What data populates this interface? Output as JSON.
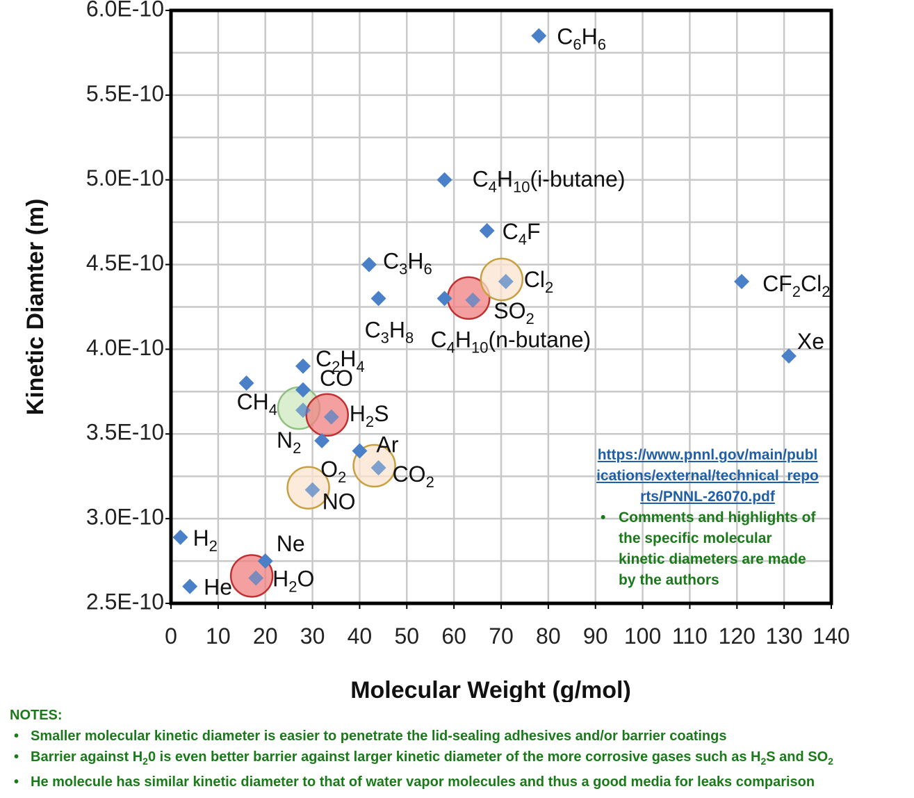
{
  "chart_data": {
    "type": "scatter",
    "xlabel": "Molecular Weight (g/mol)",
    "ylabel": "Kinetic Diamter (m)",
    "xlim": [
      0,
      140
    ],
    "ylim": [
      2.5e-10,
      6e-10
    ],
    "xticks": [
      "0",
      "10",
      "20",
      "30",
      "40",
      "50",
      "60",
      "70",
      "80",
      "90",
      "100",
      "110",
      "120",
      "130",
      "140"
    ],
    "yticks": [
      "2.5E-10",
      "3.0E-10",
      "3.5E-10",
      "4.0E-10",
      "4.5E-10",
      "5.0E-10",
      "5.5E-10",
      "6.0E-10"
    ],
    "grid": true,
    "marker_color": "#4a80c8",
    "points": [
      {
        "x": 2,
        "y": 2.89e-10,
        "label": [
          [
            "H",
            ""
          ],
          [
            "2",
            "sub"
          ]
        ]
      },
      {
        "x": 4,
        "y": 2.6e-10,
        "label": [
          [
            "He",
            ""
          ]
        ]
      },
      {
        "x": 16,
        "y": 3.8e-10,
        "label": [
          [
            "CH",
            ""
          ],
          [
            "4",
            "sub"
          ]
        ]
      },
      {
        "x": 18,
        "y": 2.65e-10,
        "label": [
          [
            "H",
            ""
          ],
          [
            "2",
            "sub"
          ],
          [
            "O",
            ""
          ]
        ],
        "highlight": "red"
      },
      {
        "x": 20,
        "y": 2.75e-10,
        "label": [
          [
            "Ne",
            ""
          ]
        ]
      },
      {
        "x": 28,
        "y": 3.64e-10,
        "label": [
          [
            "N",
            ""
          ],
          [
            "2",
            "sub"
          ]
        ],
        "highlight": "green"
      },
      {
        "x": 28,
        "y": 3.76e-10,
        "label": [
          [
            "CO",
            ""
          ]
        ]
      },
      {
        "x": 28,
        "y": 3.9e-10,
        "label": [
          [
            "C",
            ""
          ],
          [
            "2",
            "sub"
          ],
          [
            "H",
            ""
          ],
          [
            "4",
            "sub"
          ]
        ]
      },
      {
        "x": 30,
        "y": 3.17e-10,
        "label": [
          [
            "NO",
            ""
          ]
        ],
        "highlight": "orange"
      },
      {
        "x": 32,
        "y": 3.46e-10,
        "label": [
          [
            "O",
            ""
          ],
          [
            "2",
            "sub"
          ]
        ]
      },
      {
        "x": 34,
        "y": 3.6e-10,
        "label": [
          [
            "H",
            ""
          ],
          [
            "2",
            "sub"
          ],
          [
            "S",
            ""
          ]
        ],
        "highlight": "red"
      },
      {
        "x": 40,
        "y": 3.4e-10,
        "label": [
          [
            "Ar",
            ""
          ]
        ]
      },
      {
        "x": 42,
        "y": 4.5e-10,
        "label": [
          [
            "C",
            ""
          ],
          [
            "3",
            "sub"
          ],
          [
            "H",
            ""
          ],
          [
            "6",
            "sub"
          ]
        ]
      },
      {
        "x": 44,
        "y": 3.3e-10,
        "label": [
          [
            "CO",
            ""
          ],
          [
            "2",
            "sub"
          ]
        ],
        "highlight": "orange"
      },
      {
        "x": 44,
        "y": 4.3e-10,
        "label": [
          [
            "C",
            ""
          ],
          [
            "3",
            "sub"
          ],
          [
            "H",
            ""
          ],
          [
            "8",
            "sub"
          ]
        ]
      },
      {
        "x": 58,
        "y": 4.3e-10,
        "label": [
          [
            "C",
            ""
          ],
          [
            "4",
            "sub"
          ],
          [
            "H",
            ""
          ],
          [
            "10",
            "sub"
          ],
          [
            "(n-butane)",
            ""
          ]
        ]
      },
      {
        "x": 58,
        "y": 5e-10,
        "label": [
          [
            "C",
            ""
          ],
          [
            "4",
            "sub"
          ],
          [
            "H",
            ""
          ],
          [
            "10",
            "sub"
          ],
          [
            "(i-butane)",
            ""
          ]
        ]
      },
      {
        "x": 64,
        "y": 4.29e-10,
        "label": [
          [
            "SO",
            ""
          ],
          [
            "2",
            "sub"
          ]
        ],
        "highlight": "red"
      },
      {
        "x": 67,
        "y": 4.7e-10,
        "label": [
          [
            "C",
            ""
          ],
          [
            "4",
            "sub"
          ],
          [
            "F",
            ""
          ]
        ]
      },
      {
        "x": 71,
        "y": 4.4e-10,
        "label": [
          [
            "Cl",
            ""
          ],
          [
            "2",
            "sub"
          ]
        ],
        "highlight": "orange"
      },
      {
        "x": 78,
        "y": 5.85e-10,
        "label": [
          [
            "C",
            ""
          ],
          [
            "6",
            "sub"
          ],
          [
            "H",
            ""
          ],
          [
            "6",
            "sub"
          ]
        ]
      },
      {
        "x": 121,
        "y": 4.4e-10,
        "label": [
          [
            "CF",
            ""
          ],
          [
            "2",
            "sub"
          ],
          [
            "Cl",
            ""
          ],
          [
            "2",
            "sub"
          ]
        ]
      },
      {
        "x": 131,
        "y": 3.96e-10,
        "label": [
          [
            "Xe",
            ""
          ]
        ]
      }
    ],
    "highlight_colors": {
      "red": {
        "fill": "#f08080",
        "stroke": "#c03030"
      },
      "green": {
        "fill": "#cfe8c0",
        "stroke": "#8fc080"
      },
      "orange": {
        "fill": "#fbe3cf",
        "stroke": "#c8a040"
      }
    }
  },
  "source": {
    "url": "https://www.pnnl.gov/main/publications/external/technical_reports/PNNL-26070.pdf",
    "comment": "Comments and highlights of the specific molecular kinetic diameters are made by the authors"
  },
  "notes": {
    "title": "NOTES:",
    "item1": "Smaller molecular kinetic diameter is easier to penetrate the lid-sealing adhesives and/or barrier coatings",
    "item2_a": "Barrier against H",
    "item2_sub1": "2",
    "item2_b": "0 is even better barrier against larger kinetic diameter of the more corrosive gases such as H",
    "item2_sub2": "2",
    "item2_c": "S and SO",
    "item2_sub3": "2",
    "item3": "He molecule has similar kinetic diameter to that of water vapor molecules and thus a good media for leaks comparison"
  }
}
